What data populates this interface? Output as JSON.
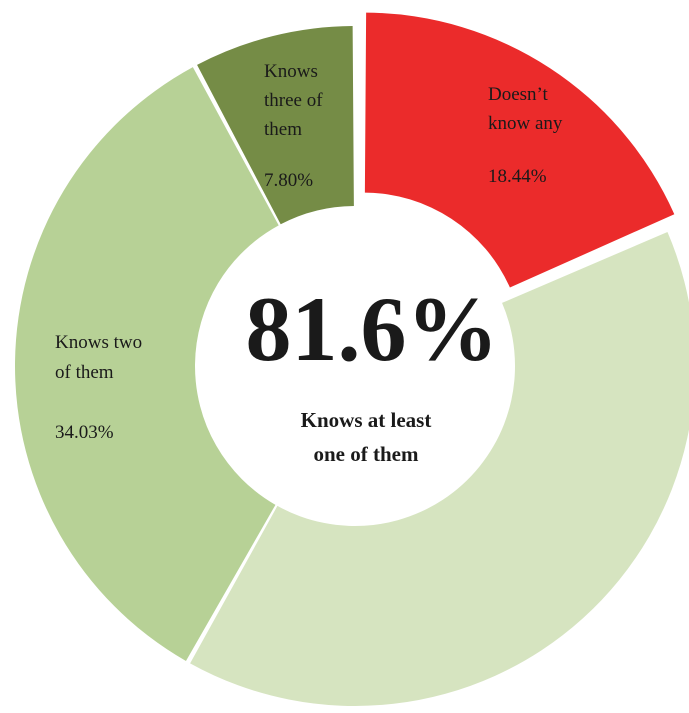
{
  "chart_data": {
    "type": "pie",
    "variant": "donut",
    "center_value": "81.6%",
    "center_caption_lines": [
      "Knows at least",
      "one of them"
    ],
    "slices": [
      {
        "id": "doesnt-know-any",
        "label_lines": [
          "Doesn’t",
          "know any"
        ],
        "value_label": "18.44%",
        "value": 18.44,
        "color": "#eb2b2b",
        "exploded": true
      },
      {
        "id": "knows-one",
        "label_lines": [],
        "value_label": "",
        "value": 39.73,
        "color": "#d6e4c0",
        "exploded": false
      },
      {
        "id": "knows-two",
        "label_lines": [
          "Knows two",
          "of them"
        ],
        "value_label": "34.03%",
        "value": 34.03,
        "color": "#b7d196",
        "exploded": false
      },
      {
        "id": "knows-three",
        "label_lines": [
          "Knows",
          "three of",
          "them"
        ],
        "value_label": "7.80%",
        "value": 7.8,
        "color": "#758c46",
        "exploded": false
      }
    ]
  }
}
